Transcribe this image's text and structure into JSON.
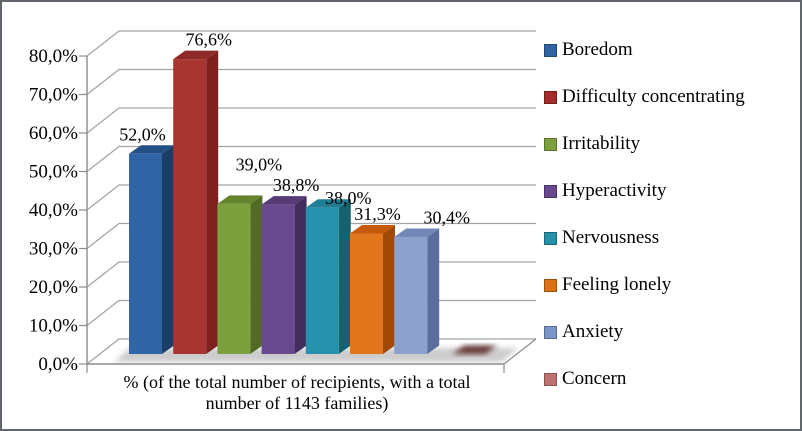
{
  "chart_data": {
    "type": "bar",
    "style": "3d-column",
    "title": "",
    "xlabel": "% (of the total number of recipients, with a total number of 1143 families)",
    "ylabel": "",
    "ylim": [
      0,
      80
    ],
    "grid": true,
    "legend_position": "right",
    "decimal_separator": ",",
    "categories": [
      "Boredom",
      "Difficulty concentrating",
      "Irritability",
      "Hyperactivity",
      "Nervousness",
      "Feeling lonely",
      "Anxiety",
      "Concern"
    ],
    "values": [
      52.0,
      76.6,
      39.0,
      38.8,
      38.0,
      31.3,
      30.4,
      0.0
    ],
    "data_labels": [
      "52,0%",
      "76,6%",
      "39,0%",
      "38,8%",
      "38,0%",
      "31,3%",
      "30,4%",
      ""
    ],
    "y_ticks": [
      "0,0%",
      "10,0%",
      "20,0%",
      "30,0%",
      "40,0%",
      "50,0%",
      "60,0%",
      "70,0%",
      "80,0%"
    ],
    "colors_front": [
      "#2F65A7",
      "#A93530",
      "#7CA03E",
      "#68498D",
      "#2791AB",
      "#E2761B",
      "#8CA2CC",
      "#5E2F2D"
    ],
    "colors_top": [
      "#234F86",
      "#8F2B26",
      "#668430",
      "#553A76",
      "#1F7D94",
      "#C55A0B",
      "#7388B8",
      "#5E2F2D"
    ],
    "colors_side": [
      "#1C3E66",
      "#7E211E",
      "#516B26",
      "#422E5C",
      "#17616F",
      "#A04A06",
      "#5A6E9E",
      "#4A2422"
    ],
    "legend_swatch_colors": [
      "#2E64A1",
      "#A32C28",
      "#7CA03E",
      "#68498D",
      "#2791AB",
      "#DC7016",
      "#7A96C9",
      "#BE7270"
    ],
    "grid_color": "#A3A3A3",
    "axis_color": "#8C8C8C",
    "label_color": "#000000"
  }
}
